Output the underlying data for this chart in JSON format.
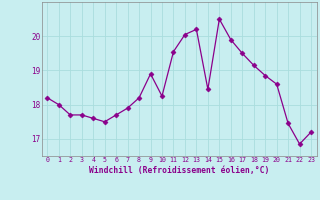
{
  "x": [
    0,
    1,
    2,
    3,
    4,
    5,
    6,
    7,
    8,
    9,
    10,
    11,
    12,
    13,
    14,
    15,
    16,
    17,
    18,
    19,
    20,
    21,
    22,
    23
  ],
  "y": [
    18.2,
    18.0,
    17.7,
    17.7,
    17.6,
    17.5,
    17.7,
    17.9,
    18.2,
    18.9,
    18.25,
    19.55,
    20.05,
    20.2,
    18.45,
    20.5,
    19.9,
    19.5,
    19.15,
    18.85,
    18.6,
    17.45,
    16.85,
    17.2
  ],
  "line_color": "#8B008B",
  "marker": "D",
  "marker_size": 2.5,
  "bg_color": "#c8eef0",
  "grid_color": "#aadddd",
  "xlabel": "Windchill (Refroidissement éolien,°C)",
  "xlabel_color": "#8B008B",
  "tick_color": "#8B008B",
  "ylim": [
    16.5,
    21.0
  ],
  "xlim": [
    -0.5,
    23.5
  ],
  "yticks": [
    17,
    18,
    19,
    20
  ],
  "xticks": [
    0,
    1,
    2,
    3,
    4,
    5,
    6,
    7,
    8,
    9,
    10,
    11,
    12,
    13,
    14,
    15,
    16,
    17,
    18,
    19,
    20,
    21,
    22,
    23
  ],
  "fig_width": 3.2,
  "fig_height": 2.0,
  "dpi": 100
}
